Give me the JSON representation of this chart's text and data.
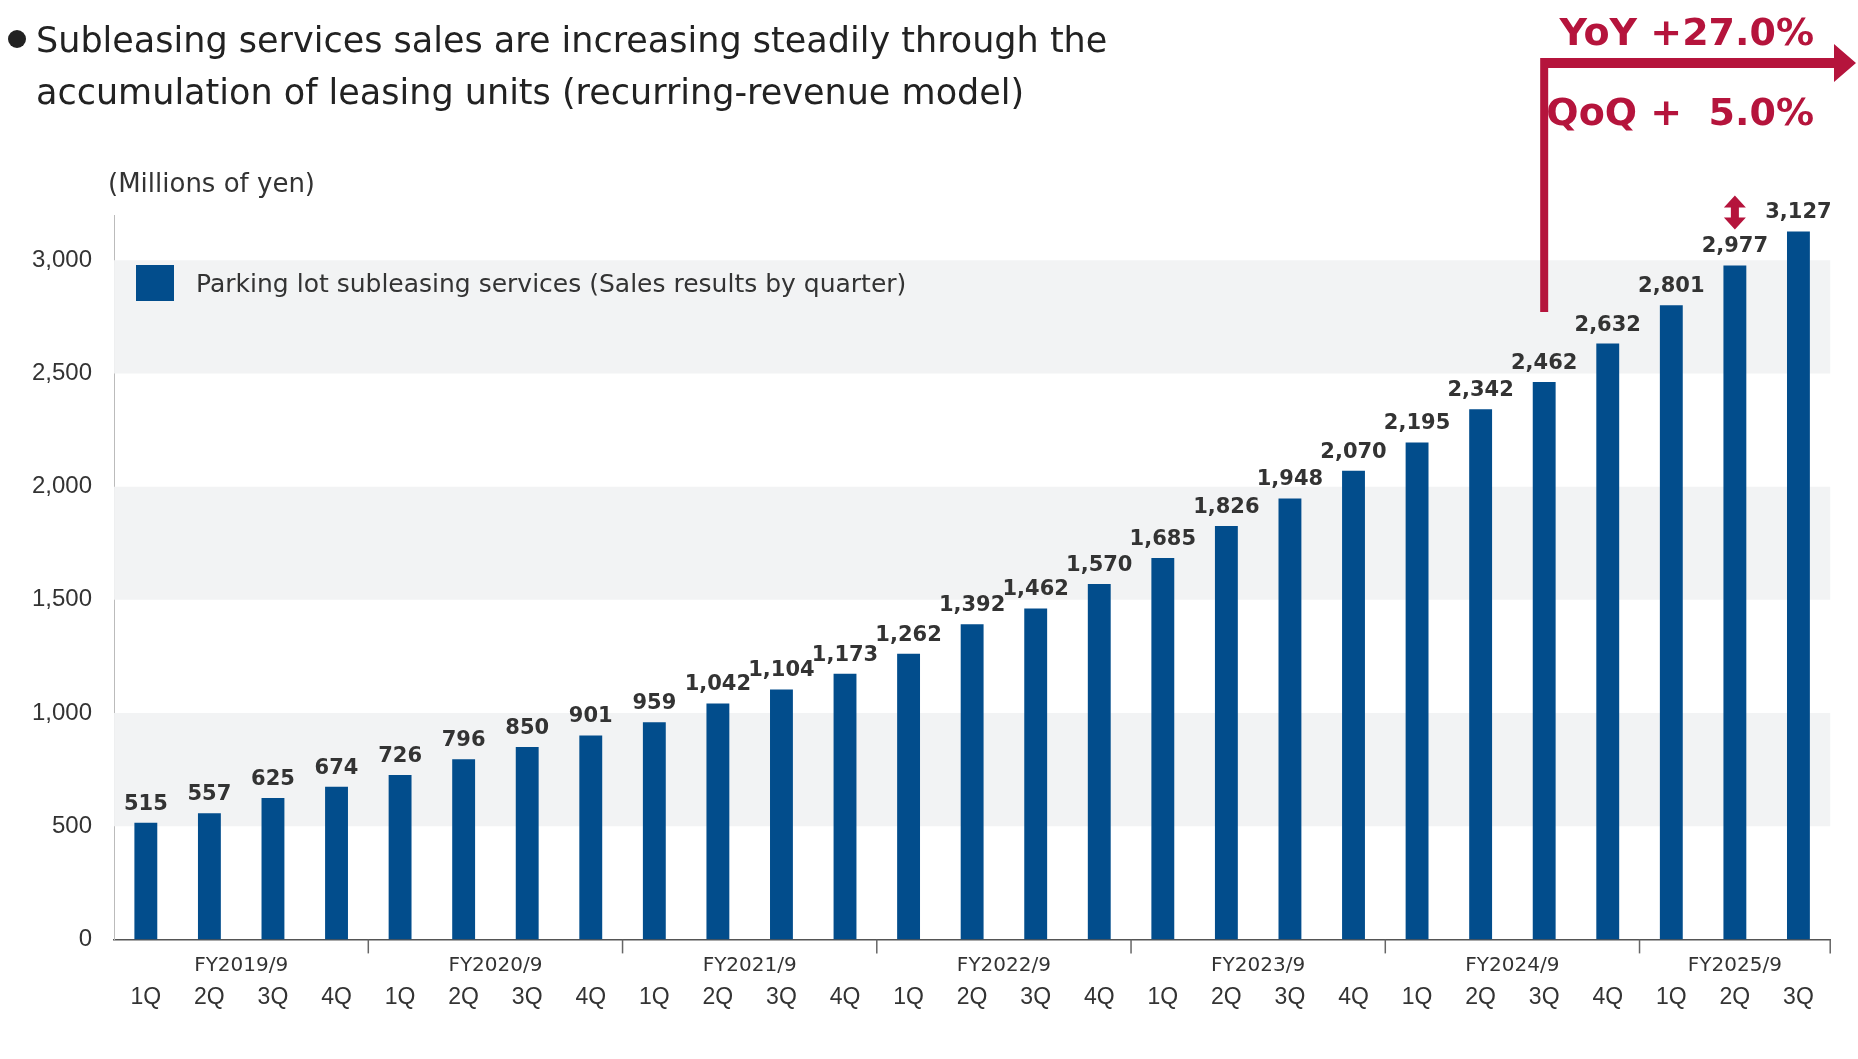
{
  "chart_data": {
    "type": "bar",
    "title": "Subleasing services sales are increasing steadily through the accumulation of leasing units (recurring-revenue model)",
    "ylabel": "(Millions of yen)",
    "categories": [
      "1Q",
      "2Q",
      "3Q",
      "4Q",
      "1Q",
      "2Q",
      "3Q",
      "4Q",
      "1Q",
      "2Q",
      "3Q",
      "4Q",
      "1Q",
      "2Q",
      "3Q",
      "4Q",
      "1Q",
      "2Q",
      "3Q",
      "4Q",
      "1Q",
      "2Q",
      "3Q",
      "4Q",
      "1Q",
      "2Q",
      "3Q"
    ],
    "series": [
      {
        "name": "Parking lot subleasing services (Sales results by quarter)",
        "color": "#024d8c",
        "values": [
          515,
          557,
          625,
          674,
          726,
          796,
          850,
          901,
          959,
          1042,
          1104,
          1173,
          1262,
          1392,
          1462,
          1570,
          1685,
          1826,
          1948,
          2070,
          2195,
          2342,
          2462,
          2632,
          2801,
          2977,
          3127
        ],
        "value_labels": [
          "515",
          "557",
          "625",
          "674",
          "726",
          "796",
          "850",
          "901",
          "959",
          "1,042",
          "1,104",
          "1,173",
          "1,262",
          "1,392",
          "1,462",
          "1,570",
          "1,685",
          "1,826",
          "1,948",
          "2,070",
          "2,195",
          "2,342",
          "2,462",
          "2,632",
          "2,801",
          "2,977",
          "3,127"
        ]
      }
    ],
    "ylim": [
      0,
      3200
    ],
    "yticks": [
      0,
      500,
      {
        "value": 1000,
        "label": "1,000"
      },
      {
        "value": 1500,
        "label": "1,500"
      },
      {
        "value": 2000,
        "label": "2,000"
      },
      {
        "value": 2500,
        "label": "2,500"
      },
      {
        "value": 3000,
        "label": "3,000"
      }
    ],
    "bands": [
      {
        "axis": "y",
        "from": 500,
        "to": 1000,
        "color": "#f2f3f4"
      },
      {
        "axis": "y",
        "from": 1500,
        "to": 2000,
        "color": "#f2f3f4"
      },
      {
        "axis": "y",
        "from": 2500,
        "to": 3000,
        "color": "#f2f3f4"
      }
    ],
    "annotations": [
      "FY2019/9",
      "FY2020/9",
      "FY2021/9",
      "FY2022/9",
      "FY2023/9",
      "FY2024/9",
      "FY2025/9",
      "YoY +27.0%",
      "QoQ +  5.0%"
    ],
    "legend": "top left"
  }
}
